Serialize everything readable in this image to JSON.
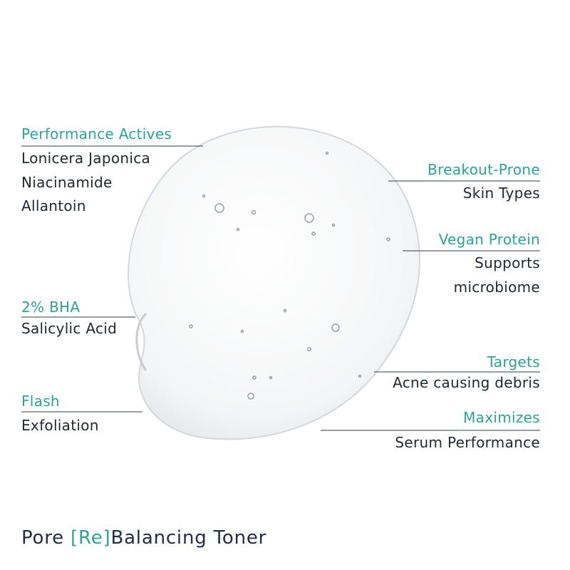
{
  "callouts": [
    {
      "heading": "Performance Actives",
      "lines": [
        "Lonicera Japonica",
        "Niacinamide",
        "Allantoin"
      ]
    },
    {
      "heading": "2% BHA",
      "lines": [
        "Salicylic Acid"
      ]
    },
    {
      "heading": "Flash",
      "lines": [
        "Exfoliation"
      ]
    },
    {
      "heading": "Breakout-Prone",
      "lines": [
        "Skin Types"
      ]
    },
    {
      "heading": "Vegan Protein",
      "lines": [
        "Supports",
        "microbiome"
      ]
    },
    {
      "heading": "Targets",
      "lines": [
        "Acne causing debris"
      ]
    },
    {
      "heading": "Maximizes",
      "lines": [
        "Serum Performance"
      ]
    }
  ],
  "title": {
    "parts": [
      "Pore ",
      "[Re]",
      "Balancing Toner"
    ]
  }
}
